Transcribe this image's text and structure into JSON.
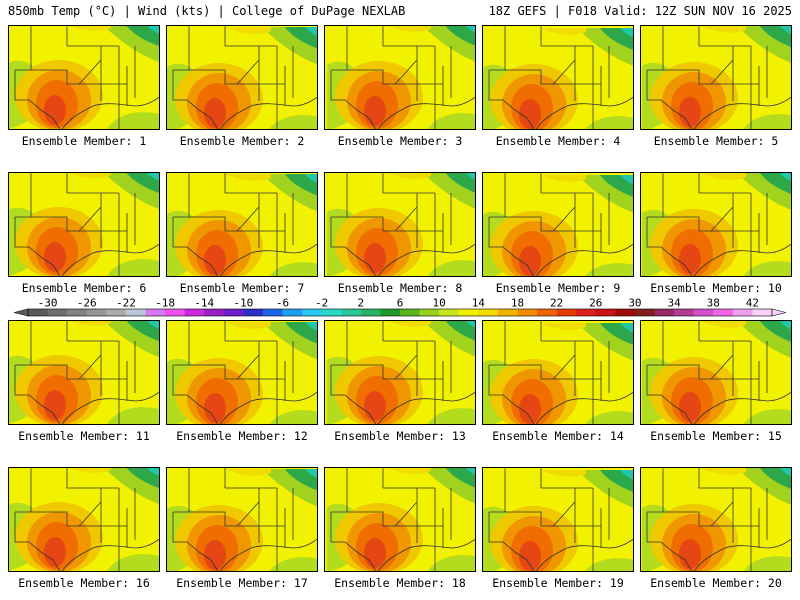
{
  "header": {
    "left": "850mb Temp (°C) | Wind (kts) | College of DuPage NEXLAB",
    "right": "18Z GEFS | F018 Valid: 12Z SUN NOV 16 2025"
  },
  "members": [
    {
      "label": "Ensemble Member: 1"
    },
    {
      "label": "Ensemble Member: 2"
    },
    {
      "label": "Ensemble Member: 3"
    },
    {
      "label": "Ensemble Member: 4"
    },
    {
      "label": "Ensemble Member: 5"
    },
    {
      "label": "Ensemble Member: 6"
    },
    {
      "label": "Ensemble Member: 7"
    },
    {
      "label": "Ensemble Member: 8"
    },
    {
      "label": "Ensemble Member: 9"
    },
    {
      "label": "Ensemble Member: 10"
    },
    {
      "label": "Ensemble Member: 11"
    },
    {
      "label": "Ensemble Member: 12"
    },
    {
      "label": "Ensemble Member: 13"
    },
    {
      "label": "Ensemble Member: 14"
    },
    {
      "label": "Ensemble Member: 15"
    },
    {
      "label": "Ensemble Member: 16"
    },
    {
      "label": "Ensemble Member: 17"
    },
    {
      "label": "Ensemble Member: 18"
    },
    {
      "label": "Ensemble Member: 19"
    },
    {
      "label": "Ensemble Member: 20"
    }
  ],
  "colorbar": {
    "tick_labels": [
      "-30",
      "-26",
      "-22",
      "-18",
      "-14",
      "-10",
      "-6",
      "-2",
      "2",
      "6",
      "10",
      "14",
      "18",
      "22",
      "26",
      "30",
      "34",
      "38",
      "42"
    ],
    "colors": [
      "#5a5a5a",
      "#6e6e6e",
      "#828282",
      "#969696",
      "#aaaaaa",
      "#b8c8d8",
      "#d878f0",
      "#f050f0",
      "#c828e0",
      "#9a1ec8",
      "#6e1ec8",
      "#2830c8",
      "#1e64e6",
      "#1e9ef0",
      "#28c8f0",
      "#28d8c8",
      "#28c89a",
      "#28b464",
      "#1e9628",
      "#5ab41e",
      "#96d21e",
      "#c8e61e",
      "#f0f000",
      "#f0dc00",
      "#f0b400",
      "#f08c00",
      "#f06400",
      "#e63c00",
      "#dc1e1e",
      "#c81414",
      "#a00a0a",
      "#821e1e",
      "#962864",
      "#b43c96",
      "#d250c8",
      "#f064e6",
      "#f0a0f0",
      "#f8d0f8"
    ]
  }
}
